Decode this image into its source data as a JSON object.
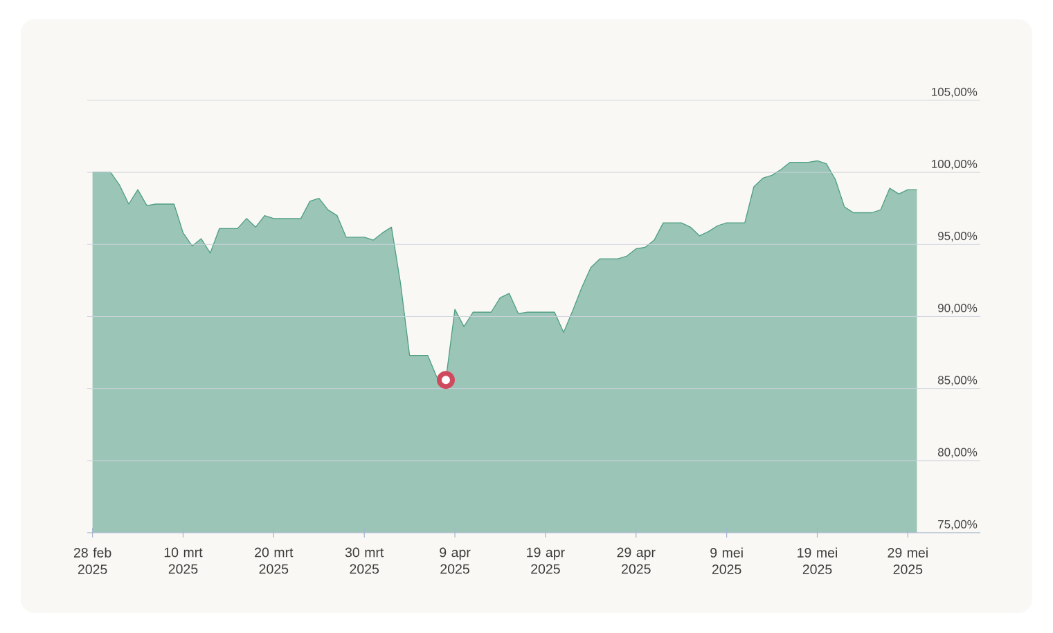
{
  "chart_data": {
    "type": "area",
    "x": [
      "2025-02-28",
      "2025-03-01",
      "2025-03-02",
      "2025-03-03",
      "2025-03-04",
      "2025-03-05",
      "2025-03-06",
      "2025-03-07",
      "2025-03-08",
      "2025-03-09",
      "2025-03-10",
      "2025-03-11",
      "2025-03-12",
      "2025-03-13",
      "2025-03-14",
      "2025-03-15",
      "2025-03-16",
      "2025-03-17",
      "2025-03-18",
      "2025-03-19",
      "2025-03-20",
      "2025-03-21",
      "2025-03-22",
      "2025-03-23",
      "2025-03-24",
      "2025-03-25",
      "2025-03-26",
      "2025-03-27",
      "2025-03-28",
      "2025-03-29",
      "2025-03-30",
      "2025-03-31",
      "2025-04-01",
      "2025-04-02",
      "2025-04-03",
      "2025-04-04",
      "2025-04-05",
      "2025-04-06",
      "2025-04-07",
      "2025-04-08",
      "2025-04-09",
      "2025-04-10",
      "2025-04-11",
      "2025-04-12",
      "2025-04-13",
      "2025-04-14",
      "2025-04-15",
      "2025-04-16",
      "2025-04-17",
      "2025-04-18",
      "2025-04-19",
      "2025-04-20",
      "2025-04-21",
      "2025-04-22",
      "2025-04-23",
      "2025-04-24",
      "2025-04-25",
      "2025-04-26",
      "2025-04-27",
      "2025-04-28",
      "2025-04-29",
      "2025-04-30",
      "2025-05-01",
      "2025-05-02",
      "2025-05-03",
      "2025-05-04",
      "2025-05-05",
      "2025-05-06",
      "2025-05-07",
      "2025-05-08",
      "2025-05-09",
      "2025-05-10",
      "2025-05-11",
      "2025-05-12",
      "2025-05-13",
      "2025-05-14",
      "2025-05-15",
      "2025-05-16",
      "2025-05-17",
      "2025-05-18",
      "2025-05-19",
      "2025-05-20",
      "2025-05-21",
      "2025-05-22",
      "2025-05-23",
      "2025-05-24",
      "2025-05-25",
      "2025-05-26",
      "2025-05-27",
      "2025-05-28",
      "2025-05-29",
      "2025-05-30"
    ],
    "series": [
      {
        "color": "#4e9e84",
        "values": [
          100.0,
          100.0,
          100.0,
          99.1,
          97.8,
          98.8,
          97.7,
          97.8,
          97.8,
          97.8,
          95.8,
          94.9,
          95.4,
          94.4,
          96.1,
          96.1,
          96.1,
          96.8,
          96.2,
          97.0,
          96.8,
          96.8,
          96.8,
          96.8,
          98.0,
          98.2,
          97.4,
          97.0,
          95.5,
          95.5,
          95.5,
          95.3,
          95.8,
          96.2,
          92.3,
          87.3,
          87.3,
          87.3,
          85.8,
          85.6,
          90.5,
          89.3,
          90.3,
          90.3,
          90.3,
          91.3,
          91.6,
          90.2,
          90.3,
          90.3,
          90.3,
          90.3,
          88.9,
          90.4,
          92.0,
          93.4,
          94.0,
          94.0,
          94.0,
          94.2,
          94.7,
          94.8,
          95.3,
          96.5,
          96.5,
          96.5,
          96.2,
          95.6,
          95.9,
          96.3,
          96.5,
          96.5,
          96.5,
          99.0,
          99.6,
          99.8,
          100.2,
          100.7,
          100.7,
          100.7,
          100.8,
          100.6,
          99.5,
          97.6,
          97.2,
          97.2,
          97.2,
          97.4,
          98.9,
          98.5,
          98.8,
          98.8
        ]
      },
      {
        "type": "scatter",
        "x": [
          "2025-04-08"
        ],
        "values": [
          85.6
        ],
        "color": "#d04a5f",
        "marker": "circle"
      }
    ],
    "xlim": [
      "2025-02-27T10:00",
      "2025-06-06"
    ],
    "xticks": [
      {
        "value": "2025-02-28",
        "label": "28 feb 2025"
      },
      {
        "value": "2025-03-10",
        "label": "10 mrt 2025"
      },
      {
        "value": "2025-03-20",
        "label": "20 mrt 2025"
      },
      {
        "value": "2025-03-30",
        "label": "30 mrt 2025"
      },
      {
        "value": "2025-04-09",
        "label": "9 apr 2025"
      },
      {
        "value": "2025-04-19",
        "label": "19 apr 2025"
      },
      {
        "value": "2025-04-29",
        "label": "29 apr 2025"
      },
      {
        "value": "2025-05-09",
        "label": "9 mei 2025"
      },
      {
        "value": "2025-05-19",
        "label": "19 mei 2025"
      },
      {
        "value": "2025-05-29",
        "label": "29 mei 2025"
      }
    ],
    "ylim": [
      75,
      105
    ],
    "yticks": [
      {
        "value": 75,
        "label": "75,00%"
      },
      {
        "value": 80,
        "label": "80,00%"
      },
      {
        "value": 85,
        "label": "85,00%"
      },
      {
        "value": 90,
        "label": "90,00%"
      },
      {
        "value": 95,
        "label": "95,00%"
      },
      {
        "value": 100,
        "label": "100,00%"
      },
      {
        "value": 105,
        "label": "105,00%"
      }
    ],
    "grid": "y"
  }
}
